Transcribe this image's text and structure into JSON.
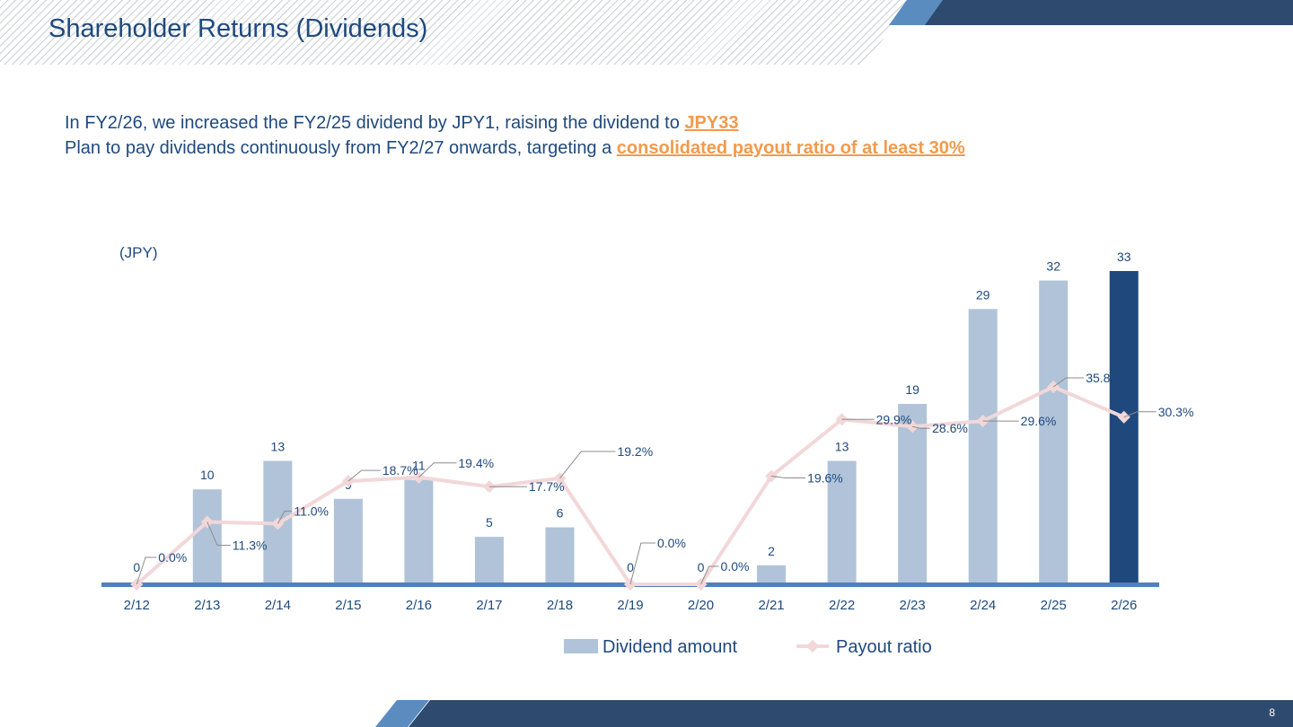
{
  "page": {
    "title": "Shareholder Returns (Dividends)",
    "headline_line1_text": "In FY2/26, we increased the FY2/25 dividend by JPY1, raising the dividend to ",
    "headline_line1_emphasis": "JPY33",
    "headline_line2_text": "Plan to pay dividends continuously from FY2/27 onwards, targeting a ",
    "headline_line2_emphasis": "consolidated payout ratio of at least 30%",
    "page_number": "8"
  },
  "colors": {
    "title": "#1f497d",
    "emphasis": "#f39a4c",
    "bar": "#b0c3d9",
    "bar_highlight": "#1f497d",
    "line": "#f2d7d9",
    "axis": "#4f81bd",
    "header_dark": "#2e4a6e",
    "header_light": "#5b8cbf"
  },
  "chart_data": {
    "type": "bar",
    "unit_label": "(JPY)",
    "categories": [
      "2/12",
      "2/13",
      "2/14",
      "2/15",
      "2/16",
      "2/17",
      "2/18",
      "2/19",
      "2/20",
      "2/21",
      "2/22",
      "2/23",
      "2/24",
      "2/25",
      "2/26"
    ],
    "series": [
      {
        "name": "Dividend amount",
        "type": "bar",
        "values": [
          0,
          10,
          13,
          9,
          11,
          5,
          6,
          0,
          0,
          2,
          13,
          19,
          29,
          32,
          33
        ],
        "labels": [
          "0",
          "10",
          "13",
          "9",
          "11",
          "5",
          "6",
          "0",
          "0",
          "2",
          "13",
          "19",
          "29",
          "32",
          "33"
        ],
        "highlight_index": 14
      },
      {
        "name": "Payout ratio",
        "type": "line",
        "values": [
          0.0,
          11.3,
          11.0,
          18.7,
          19.4,
          17.7,
          19.2,
          0.0,
          0.0,
          19.6,
          29.9,
          28.6,
          29.6,
          35.8,
          30.3
        ],
        "labels": [
          "0.0%",
          "11.3%",
          "11.0%",
          "18.7%",
          "19.4%",
          "17.7%",
          "19.2%",
          "0.0%",
          "0.0%",
          "19.6%",
          "29.9%",
          "28.6%",
          "29.6%",
          "35.8%",
          "30.3%"
        ]
      }
    ],
    "y_bar_range": [
      0,
      34
    ],
    "y_line_range": [
      0,
      67
    ],
    "grid": false,
    "legend_position": "bottom"
  }
}
